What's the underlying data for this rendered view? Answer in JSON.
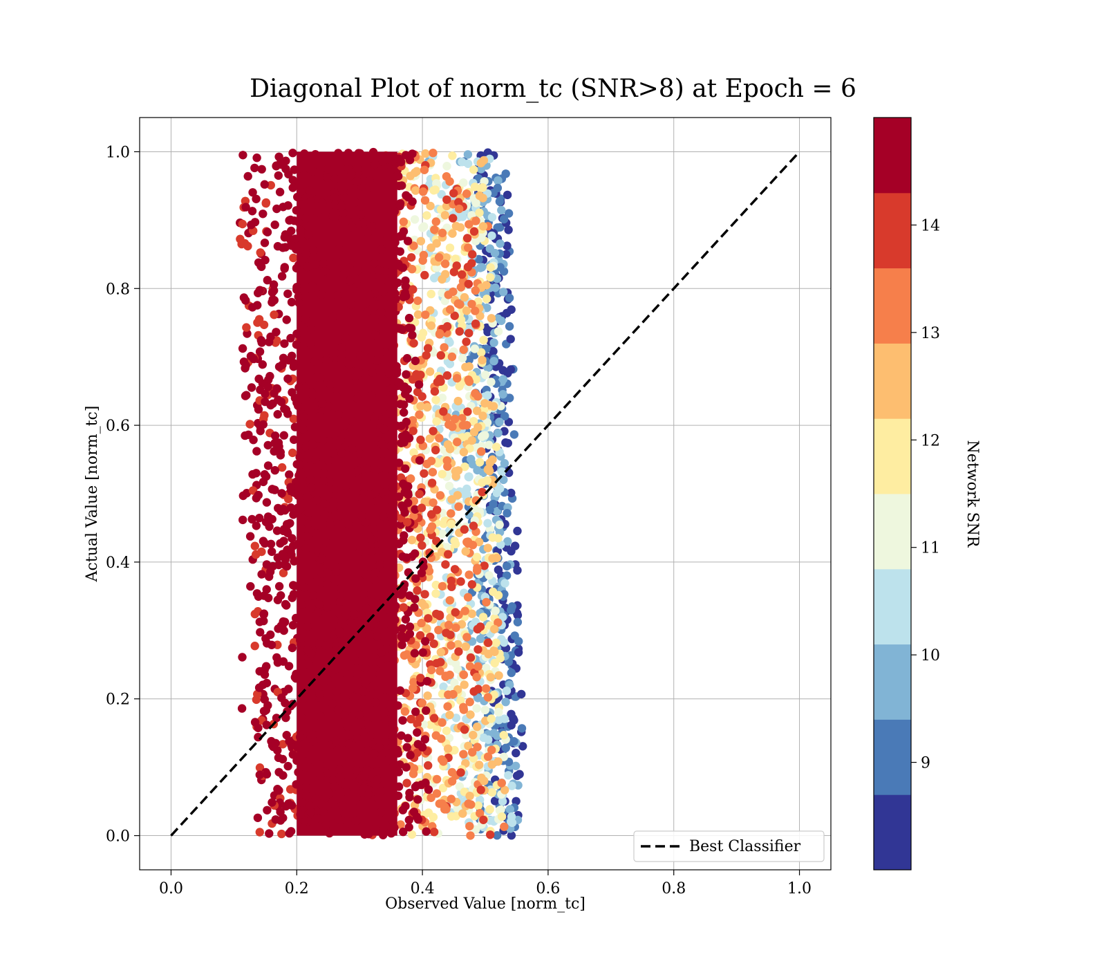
{
  "chart_data": {
    "type": "scatter",
    "title": "Diagonal Plot of norm_tc (SNR>8) at Epoch = 6",
    "xlabel": "Observed Value [norm_tc]",
    "ylabel": "Actual Value [norm_tc]",
    "xlim": [
      -0.05,
      1.05
    ],
    "ylim": [
      -0.05,
      1.05
    ],
    "xticks": [
      "0.0",
      "0.2",
      "0.4",
      "0.6",
      "0.8",
      "1.0"
    ],
    "yticks": [
      "0.0",
      "0.2",
      "0.4",
      "0.6",
      "0.8",
      "1.0"
    ],
    "grid": true,
    "legend": {
      "placement": "lower-right",
      "entries": [
        "Best Classifier"
      ]
    },
    "reference_line": {
      "name": "Best Classifier",
      "style": "dashed",
      "x": [
        0.0,
        1.0
      ],
      "y": [
        0.0,
        1.0
      ]
    },
    "scatter_extent": {
      "x_range": [
        0.11,
        0.55
      ],
      "y_range": [
        0.0,
        1.0
      ]
    },
    "snr_bands": [
      {
        "snr": [
          8,
          9
        ],
        "observed_range": [
          0.5,
          0.55
        ],
        "density": 0.25
      },
      {
        "snr": [
          9,
          10
        ],
        "observed_range": [
          0.47,
          0.54
        ],
        "density": 0.25
      },
      {
        "snr": [
          10,
          11
        ],
        "observed_range": [
          0.42,
          0.53
        ],
        "density": 0.3
      },
      {
        "snr": [
          11,
          12
        ],
        "observed_range": [
          0.38,
          0.52
        ],
        "density": 0.35
      },
      {
        "snr": [
          12,
          13
        ],
        "observed_range": [
          0.35,
          0.52
        ],
        "density": 0.4
      },
      {
        "snr": [
          13,
          14
        ],
        "observed_range": [
          0.33,
          0.5
        ],
        "density": 0.4
      },
      {
        "snr": [
          14,
          15
        ],
        "observed_range": [
          0.12,
          0.4
        ],
        "density": 1.0
      }
    ],
    "colorbar": {
      "label": "Network SNR",
      "range": [
        8,
        15
      ],
      "ticks": [
        "9",
        "10",
        "11",
        "12",
        "13",
        "14"
      ],
      "colors": [
        "#313695",
        "#4a7ab7",
        "#81b4d5",
        "#bde2ec",
        "#eef7de",
        "#feeda1",
        "#fdbe70",
        "#f67f4b",
        "#d83a2c",
        "#a50026"
      ]
    }
  }
}
